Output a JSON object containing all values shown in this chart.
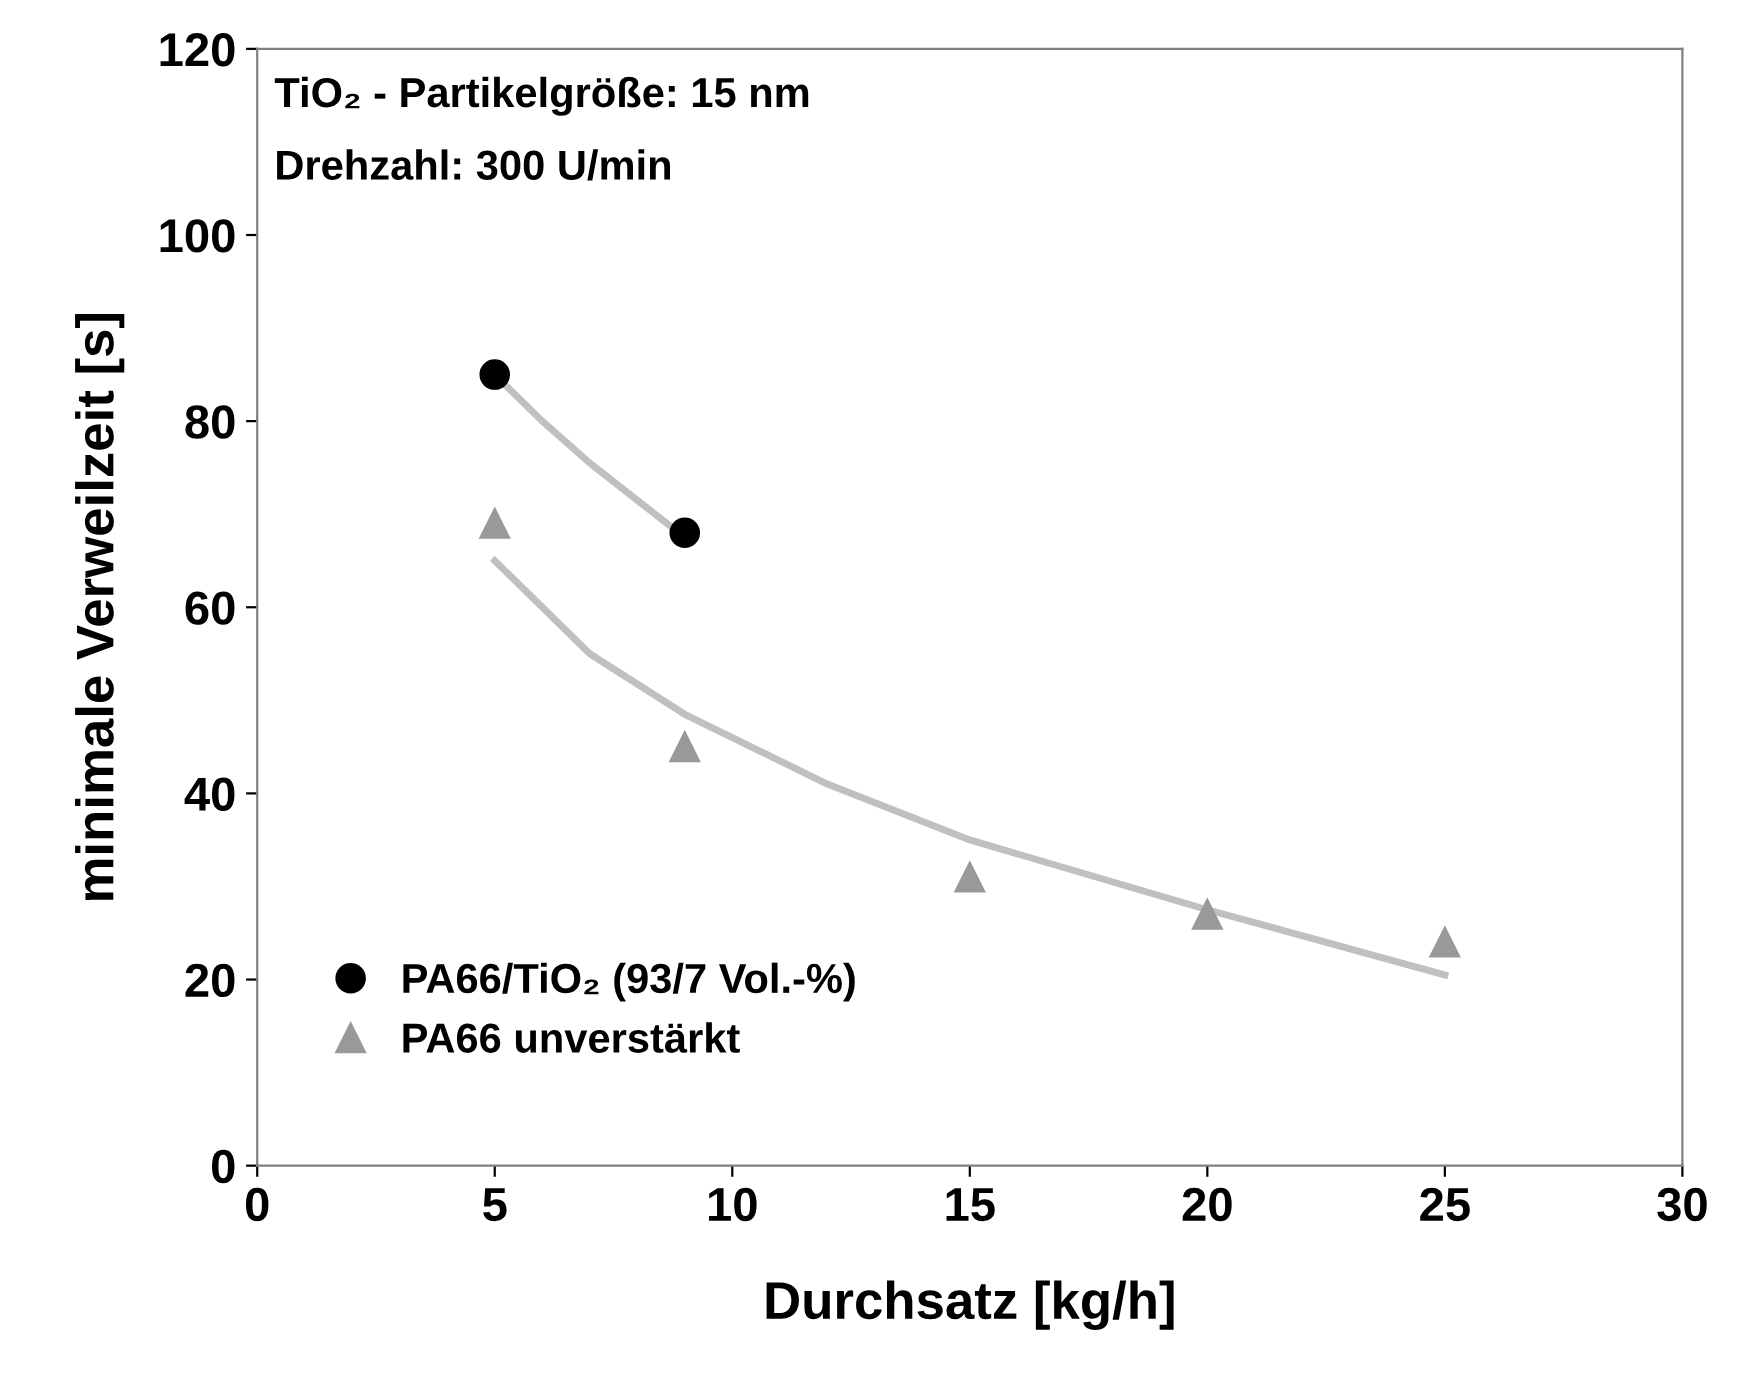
{
  "chart_data": {
    "type": "scatter",
    "xlabel": "Durchsatz [kg/h]",
    "ylabel": "minimale Verweilzeit [s]",
    "annotations": [
      "TiO₂ - Partikelgröße: 15 nm",
      "Drehzahl: 300 U/min"
    ],
    "xlim": [
      0,
      30
    ],
    "xticks": [
      0,
      5,
      10,
      15,
      20,
      25,
      30
    ],
    "ylim": [
      0,
      120
    ],
    "yticks": [
      0,
      20,
      40,
      60,
      80,
      100,
      120
    ],
    "grid": false,
    "legend": "bottom left",
    "series": [
      {
        "type": "line",
        "color": "#c0c0c0",
        "marker": "none",
        "x": [
          5,
          6,
          7,
          8,
          9
        ],
        "values": [
          85,
          80,
          75.5,
          71.5,
          67.5
        ]
      },
      {
        "type": "line",
        "color": "#c0c0c0",
        "marker": "none",
        "x": [
          5,
          7,
          9,
          12,
          15,
          20,
          25
        ],
        "values": [
          65,
          55,
          48.5,
          41,
          35,
          27.5,
          20.5
        ]
      },
      {
        "name": "PA66/TiO₂ (93/7 Vol.-%)",
        "color": "#000000",
        "marker": "circle",
        "x": [
          5,
          9
        ],
        "values": [
          85,
          68
        ]
      },
      {
        "name": "PA66 unverstärkt",
        "color": "#999999",
        "marker": "triangle",
        "x": [
          5,
          9,
          15,
          20,
          25
        ],
        "values": [
          69,
          45,
          31,
          27,
          24
        ]
      }
    ]
  }
}
